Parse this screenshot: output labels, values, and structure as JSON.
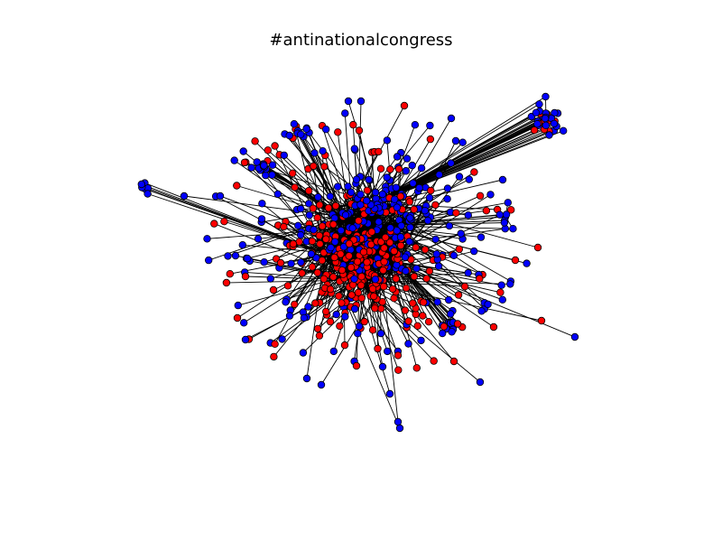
{
  "figure": {
    "title": "#antinationalcongress"
  },
  "graph": {
    "node_colors": [
      "#ff0000",
      "#0000ff"
    ],
    "edge_color": "#000000",
    "node_outline_color": "#000000",
    "background": "#ffffff"
  }
}
